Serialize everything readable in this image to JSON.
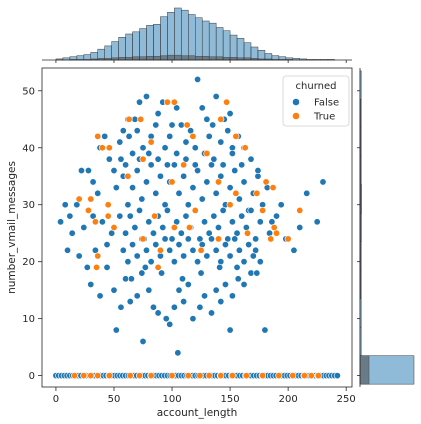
{
  "chart_data": {
    "type": "scatter",
    "subtype": "jointplot",
    "xlabel": "account_length",
    "ylabel": "number_vmail_messages",
    "xlim": [
      -12,
      255
    ],
    "ylim": [
      -2,
      54
    ],
    "xticks": [
      0,
      50,
      100,
      150,
      200,
      250
    ],
    "yticks": [
      0,
      10,
      20,
      30,
      40,
      50
    ],
    "grid": false,
    "colors": {
      "False": "#1f77b4",
      "True": "#ff7f0e"
    },
    "legend": {
      "title": "churned",
      "placement": "top-right",
      "entries": [
        {
          "label": "False",
          "color": "#1f77b4"
        },
        {
          "label": "True",
          "color": "#ff7f0e"
        }
      ]
    },
    "marginal_x_hist": {
      "bin_width": 6,
      "bin_start": 0,
      "all_counts": [
        2,
        4,
        6,
        8,
        10,
        14,
        20,
        26,
        34,
        42,
        48,
        52,
        58,
        64,
        66,
        80,
        88,
        96,
        92,
        84,
        78,
        72,
        68,
        60,
        54,
        46,
        40,
        32,
        24,
        18,
        12,
        8,
        6,
        4,
        3,
        2,
        1,
        1,
        1,
        1
      ],
      "true_counts": [
        0,
        0,
        1,
        1,
        1,
        2,
        3,
        3,
        4,
        5,
        5,
        6,
        6,
        7,
        7,
        8,
        9,
        9,
        8,
        8,
        7,
        7,
        6,
        6,
        5,
        5,
        4,
        4,
        3,
        2,
        2,
        1,
        1,
        1,
        0,
        0,
        0,
        0,
        0,
        0
      ]
    },
    "marginal_y_hist": {
      "bins": [
        0,
        5,
        10,
        15,
        20,
        25,
        30,
        35,
        40,
        45,
        50
      ],
      "all_counts": [
        2411,
        4,
        6,
        14,
        38,
        62,
        70,
        48,
        24,
        8,
        2
      ],
      "true_counts": [
        403,
        0,
        0,
        1,
        3,
        5,
        6,
        4,
        2,
        1,
        0
      ]
    },
    "series": [
      {
        "name": "False",
        "points": [
          [
            62,
            45
          ],
          [
            68,
            45
          ],
          [
            72,
            48
          ],
          [
            78,
            49
          ],
          [
            88,
            46
          ],
          [
            92,
            48
          ],
          [
            100,
            44
          ],
          [
            104,
            47
          ],
          [
            108,
            44
          ],
          [
            122,
            52
          ],
          [
            126,
            47
          ],
          [
            130,
            45
          ],
          [
            138,
            49
          ],
          [
            145,
            45
          ],
          [
            150,
            46
          ],
          [
            55,
            41
          ],
          [
            58,
            43
          ],
          [
            63,
            42
          ],
          [
            70,
            43
          ],
          [
            75,
            40
          ],
          [
            82,
            42
          ],
          [
            86,
            44
          ],
          [
            94,
            40
          ],
          [
            98,
            42
          ],
          [
            112,
            41
          ],
          [
            116,
            43
          ],
          [
            120,
            40
          ],
          [
            132,
            42
          ],
          [
            135,
            44
          ],
          [
            142,
            41
          ],
          [
            148,
            43
          ],
          [
            152,
            40
          ],
          [
            157,
            42
          ],
          [
            162,
            40
          ],
          [
            38,
            40
          ],
          [
            42,
            42
          ],
          [
            46,
            38
          ],
          [
            50,
            36
          ],
          [
            28,
            36
          ],
          [
            32,
            34
          ],
          [
            22,
            36
          ],
          [
            18,
            30
          ],
          [
            12,
            28
          ],
          [
            8,
            30
          ],
          [
            4,
            27
          ],
          [
            14,
            25
          ],
          [
            24,
            26
          ],
          [
            10,
            22
          ],
          [
            20,
            21
          ],
          [
            27,
            19
          ],
          [
            30,
            16
          ],
          [
            34,
            22
          ],
          [
            38,
            14
          ],
          [
            44,
            19
          ],
          [
            50,
            15
          ],
          [
            56,
            12
          ],
          [
            60,
            17
          ],
          [
            64,
            13
          ],
          [
            70,
            14
          ],
          [
            74,
            18
          ],
          [
            80,
            15
          ],
          [
            84,
            12
          ],
          [
            88,
            11
          ],
          [
            95,
            10
          ],
          [
            98,
            9
          ],
          [
            102,
            12
          ],
          [
            106,
            15
          ],
          [
            110,
            13
          ],
          [
            114,
            16
          ],
          [
            118,
            10
          ],
          [
            124,
            12
          ],
          [
            128,
            14
          ],
          [
            134,
            11
          ],
          [
            138,
            15
          ],
          [
            142,
            13
          ],
          [
            146,
            16
          ],
          [
            152,
            14
          ],
          [
            156,
            19
          ],
          [
            162,
            16
          ],
          [
            168,
            18
          ],
          [
            172,
            22
          ],
          [
            176,
            20
          ],
          [
            180,
            8
          ],
          [
            184,
            25
          ],
          [
            190,
            28
          ],
          [
            194,
            30
          ],
          [
            198,
            24
          ],
          [
            205,
            22
          ],
          [
            210,
            26
          ],
          [
            216,
            32
          ],
          [
            225,
            27
          ],
          [
            230,
            34
          ],
          [
            52,
            8
          ],
          [
            75,
            6
          ],
          [
            105,
            4
          ],
          [
            150,
            8
          ],
          [
            52,
            33
          ],
          [
            58,
            35
          ],
          [
            62,
            30
          ],
          [
            66,
            33
          ],
          [
            70,
            36
          ],
          [
            74,
            31
          ],
          [
            78,
            34
          ],
          [
            82,
            37
          ],
          [
            86,
            32
          ],
          [
            90,
            35
          ],
          [
            94,
            30
          ],
          [
            98,
            34
          ],
          [
            102,
            37
          ],
          [
            106,
            32
          ],
          [
            110,
            35
          ],
          [
            114,
            30
          ],
          [
            118,
            33
          ],
          [
            122,
            36
          ],
          [
            126,
            31
          ],
          [
            130,
            34
          ],
          [
            134,
            37
          ],
          [
            138,
            32
          ],
          [
            142,
            35
          ],
          [
            146,
            30
          ],
          [
            150,
            33
          ],
          [
            154,
            36
          ],
          [
            158,
            31
          ],
          [
            162,
            34
          ],
          [
            166,
            29
          ],
          [
            170,
            32
          ],
          [
            174,
            35
          ],
          [
            178,
            30
          ],
          [
            182,
            33
          ],
          [
            186,
            27
          ],
          [
            55,
            28
          ],
          [
            60,
            25
          ],
          [
            64,
            28
          ],
          [
            68,
            26
          ],
          [
            72,
            29
          ],
          [
            76,
            24
          ],
          [
            80,
            27
          ],
          [
            84,
            25
          ],
          [
            88,
            28
          ],
          [
            92,
            26
          ],
          [
            96,
            29
          ],
          [
            100,
            24
          ],
          [
            104,
            27
          ],
          [
            108,
            25
          ],
          [
            112,
            28
          ],
          [
            116,
            26
          ],
          [
            120,
            29
          ],
          [
            124,
            24
          ],
          [
            128,
            27
          ],
          [
            132,
            25
          ],
          [
            136,
            28
          ],
          [
            140,
            26
          ],
          [
            144,
            29
          ],
          [
            148,
            24
          ],
          [
            152,
            27
          ],
          [
            156,
            25
          ],
          [
            160,
            28
          ],
          [
            164,
            26
          ],
          [
            168,
            29
          ],
          [
            172,
            24
          ],
          [
            176,
            27
          ],
          [
            45,
            30
          ],
          [
            40,
            27
          ],
          [
            36,
            32
          ],
          [
            32,
            28
          ],
          [
            48,
            25
          ],
          [
            44,
            23
          ],
          [
            58,
            22
          ],
          [
            62,
            20
          ],
          [
            66,
            23
          ],
          [
            70,
            21
          ],
          [
            74,
            24
          ],
          [
            78,
            22
          ],
          [
            82,
            20
          ],
          [
            86,
            23
          ],
          [
            90,
            21
          ],
          [
            94,
            24
          ],
          [
            98,
            22
          ],
          [
            102,
            20
          ],
          [
            106,
            23
          ],
          [
            110,
            21
          ],
          [
            114,
            24
          ],
          [
            118,
            22
          ],
          [
            122,
            20
          ],
          [
            126,
            23
          ],
          [
            130,
            21
          ],
          [
            134,
            24
          ],
          [
            138,
            22
          ],
          [
            142,
            20
          ],
          [
            146,
            23
          ],
          [
            150,
            21
          ],
          [
            154,
            24
          ],
          [
            158,
            22
          ],
          [
            162,
            20
          ],
          [
            166,
            23
          ],
          [
            170,
            21
          ],
          [
            56,
            38
          ],
          [
            60,
            37
          ],
          [
            66,
            39
          ],
          [
            72,
            38
          ],
          [
            80,
            39
          ],
          [
            88,
            38
          ],
          [
            96,
            37
          ],
          [
            104,
            39
          ],
          [
            112,
            38
          ],
          [
            120,
            37
          ],
          [
            128,
            39
          ],
          [
            136,
            38
          ],
          [
            144,
            37
          ],
          [
            152,
            39
          ],
          [
            160,
            37
          ],
          [
            168,
            38
          ],
          [
            174,
            36
          ],
          [
            65,
            17
          ],
          [
            77,
            19
          ],
          [
            91,
            18
          ],
          [
            109,
            17
          ],
          [
            125,
            18
          ],
          [
            141,
            19
          ],
          [
            157,
            17
          ],
          [
            173,
            18
          ]
        ],
        "baseline_x_range": [
          0,
          243
        ]
      },
      {
        "name": "True",
        "points": [
          [
            96,
            48
          ],
          [
            102,
            48
          ],
          [
            147,
            48
          ],
          [
            63,
            45
          ],
          [
            73,
            45
          ],
          [
            113,
            44
          ],
          [
            142,
            45
          ],
          [
            82,
            41
          ],
          [
            118,
            42
          ],
          [
            155,
            42
          ],
          [
            163,
            40
          ],
          [
            46,
            40
          ],
          [
            36,
            42
          ],
          [
            40,
            40
          ],
          [
            75,
            38
          ],
          [
            110,
            37
          ],
          [
            130,
            39
          ],
          [
            62,
            35
          ],
          [
            100,
            34
          ],
          [
            140,
            34
          ],
          [
            155,
            32
          ],
          [
            181,
            34
          ],
          [
            178,
            29
          ],
          [
            187,
            33
          ],
          [
            188,
            26
          ],
          [
            173,
            32
          ],
          [
            150,
            30
          ],
          [
            120,
            29
          ],
          [
            85,
            28
          ],
          [
            45,
            30
          ],
          [
            30,
            31
          ],
          [
            28,
            29
          ],
          [
            20,
            31
          ],
          [
            45,
            28
          ],
          [
            34,
            27
          ],
          [
            102,
            26
          ],
          [
            115,
            26
          ],
          [
            140,
            24
          ],
          [
            165,
            25
          ],
          [
            185,
            24
          ],
          [
            190,
            25
          ],
          [
            210,
            29
          ],
          [
            36,
            21
          ],
          [
            35,
            19
          ],
          [
            90,
            22
          ],
          [
            125,
            22
          ],
          [
            88,
            19
          ],
          [
            75,
            24
          ],
          [
            50,
            26
          ],
          [
            200,
            24
          ]
        ],
        "baseline_x": [
          16,
          24,
          30,
          36,
          46,
          64,
          72,
          82,
          100,
          114,
          124,
          132,
          142,
          152,
          164,
          178,
          192,
          204,
          214,
          220,
          226
        ]
      }
    ]
  }
}
